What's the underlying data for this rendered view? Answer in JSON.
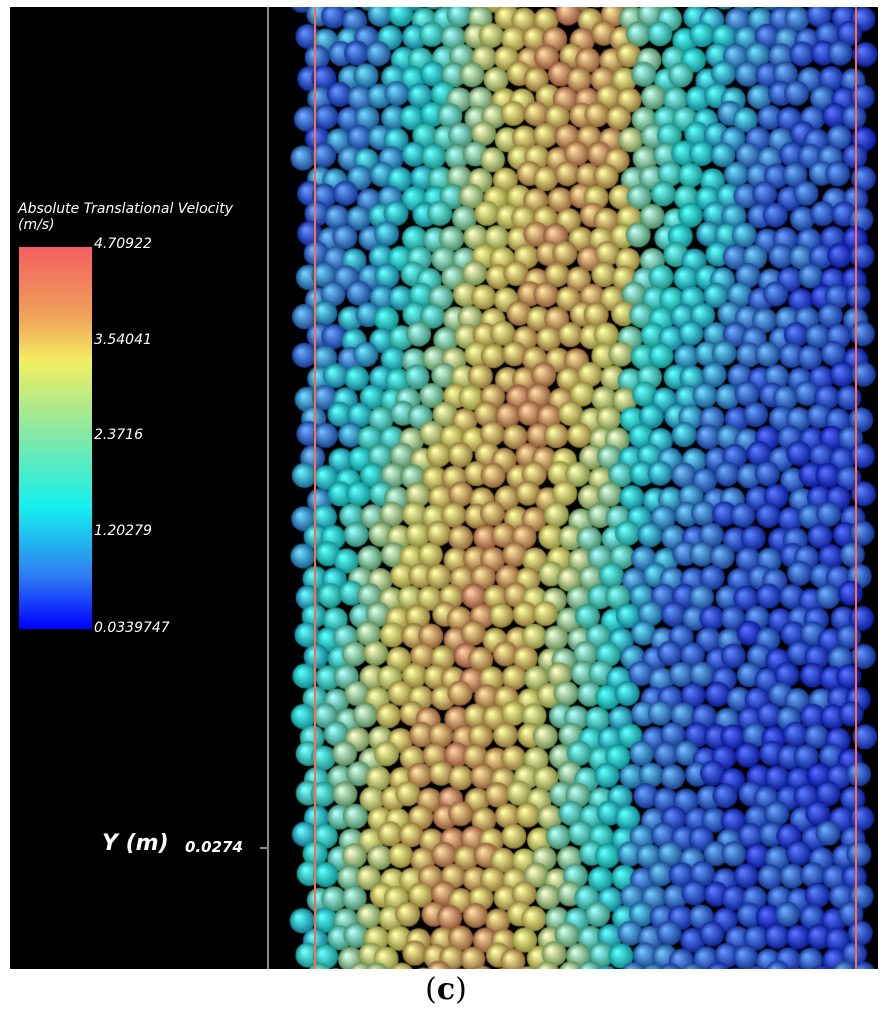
{
  "legend": {
    "title_line1": "Absolute Translational Velocity",
    "title_line2": "(m/s)",
    "ticks": [
      "4.70922",
      "3.54041",
      "2.3716",
      "1.20279",
      "0.0339747"
    ],
    "colors": [
      "#f25f5f",
      "#f0a15a",
      "#f2ee60",
      "#7fe8a8",
      "#14f1ee",
      "#2f7df2",
      "#0000ff"
    ]
  },
  "axis": {
    "label": "Y (m)",
    "value": "0.0274"
  },
  "caption": {
    "open": "(",
    "letter": "c",
    "close": ")"
  },
  "wall_color": "#ff6b4f"
}
